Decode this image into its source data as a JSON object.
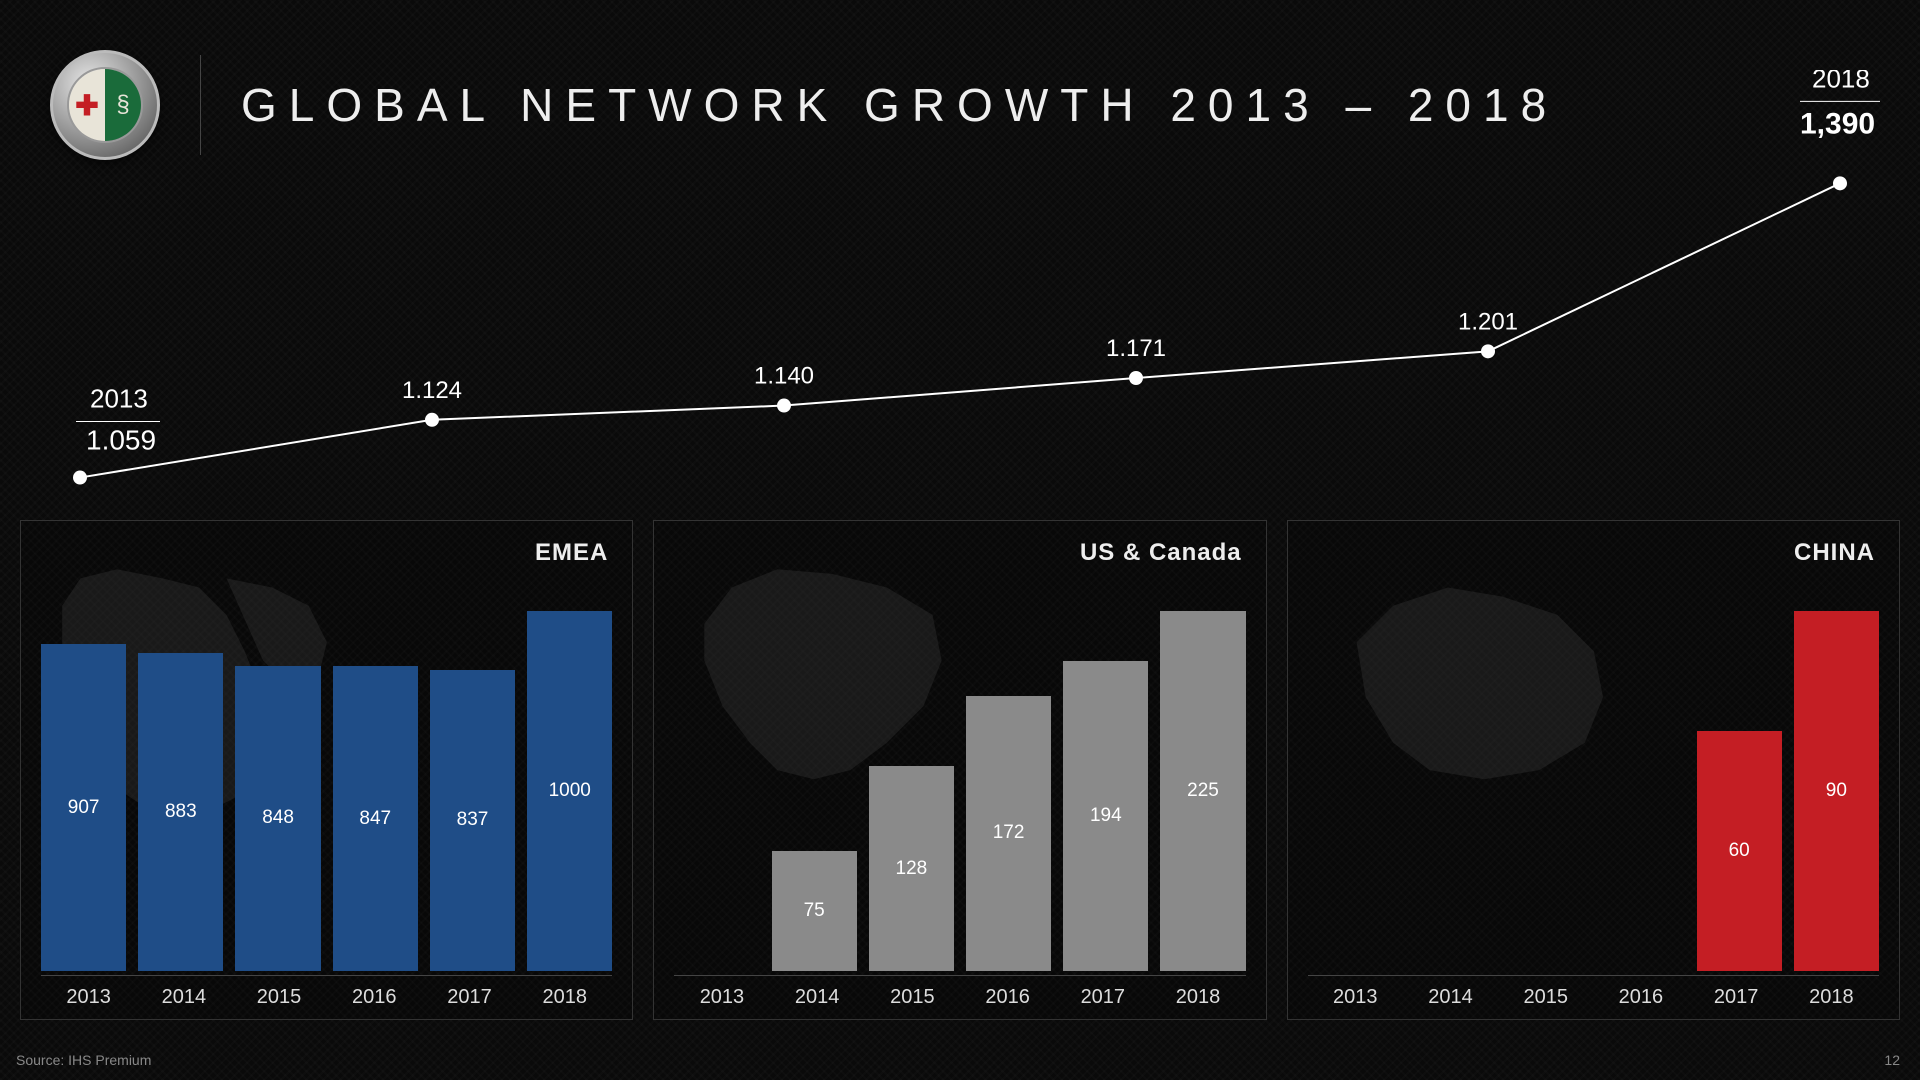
{
  "slide": {
    "title": "GLOBAL NETWORK GROWTH 2013 – 2018",
    "source": "Source: IHS Premium",
    "page": "12"
  },
  "logo": {
    "brand_name": "ALFA ROMEO",
    "outer_ring_color": "#bbbbbb",
    "left_bg": "#e8e4d8",
    "right_bg": "#1a6b3a",
    "cross_color": "#c41e24"
  },
  "line_chart": {
    "type": "line",
    "years": [
      "2013",
      "2014",
      "2015",
      "2016",
      "2017",
      "2018"
    ],
    "values": [
      1059,
      1124,
      1140,
      1171,
      1201,
      1390
    ],
    "value_labels": [
      "1.059",
      "1.124",
      "1.140",
      "1.171",
      "1.201",
      "1,390"
    ],
    "start_year_label": "2013",
    "end_year_label": "2018",
    "line_color": "#ffffff",
    "line_width": 2,
    "marker_radius": 7,
    "marker_color": "#ffffff",
    "label_fontsize": 24,
    "year_fontsize": 26,
    "background_color": "transparent",
    "y_range": [
      1000,
      1450
    ]
  },
  "panels": [
    {
      "title": "EMEA",
      "bar_color": "#1f4d87",
      "categories": [
        "2013",
        "2014",
        "2015",
        "2016",
        "2017",
        "2018"
      ],
      "values": [
        907,
        883,
        848,
        847,
        837,
        1000
      ],
      "chart_type": "bar",
      "y_max": 1000,
      "value_fontsize": 19,
      "value_color": "#ffffff",
      "axis_color": "#444444",
      "map_region": "emea"
    },
    {
      "title": "US & Canada",
      "bar_color": "#8a8a8a",
      "categories": [
        "2013",
        "2014",
        "2015",
        "2016",
        "2017",
        "2018"
      ],
      "values": [
        null,
        75,
        128,
        172,
        194,
        225
      ],
      "chart_type": "bar",
      "y_max": 225,
      "value_fontsize": 19,
      "value_color": "#ffffff",
      "axis_color": "#444444",
      "map_region": "north-america"
    },
    {
      "title": "CHINA",
      "bar_color": "#c41e24",
      "categories": [
        "2013",
        "2014",
        "2015",
        "2016",
        "2017",
        "2018"
      ],
      "values": [
        null,
        null,
        null,
        null,
        60,
        90
      ],
      "chart_type": "bar",
      "y_max": 90,
      "value_fontsize": 19,
      "value_color": "#ffffff",
      "axis_color": "#444444",
      "map_region": "china"
    }
  ],
  "styling": {
    "page_bg": "#0a0a0a",
    "title_color": "#eeeeee",
    "title_fontsize": 46,
    "title_letter_spacing": 12,
    "panel_border_color": "#333333",
    "panel_title_fontsize": 24,
    "footer_color": "#888888",
    "footer_fontsize": 14
  }
}
